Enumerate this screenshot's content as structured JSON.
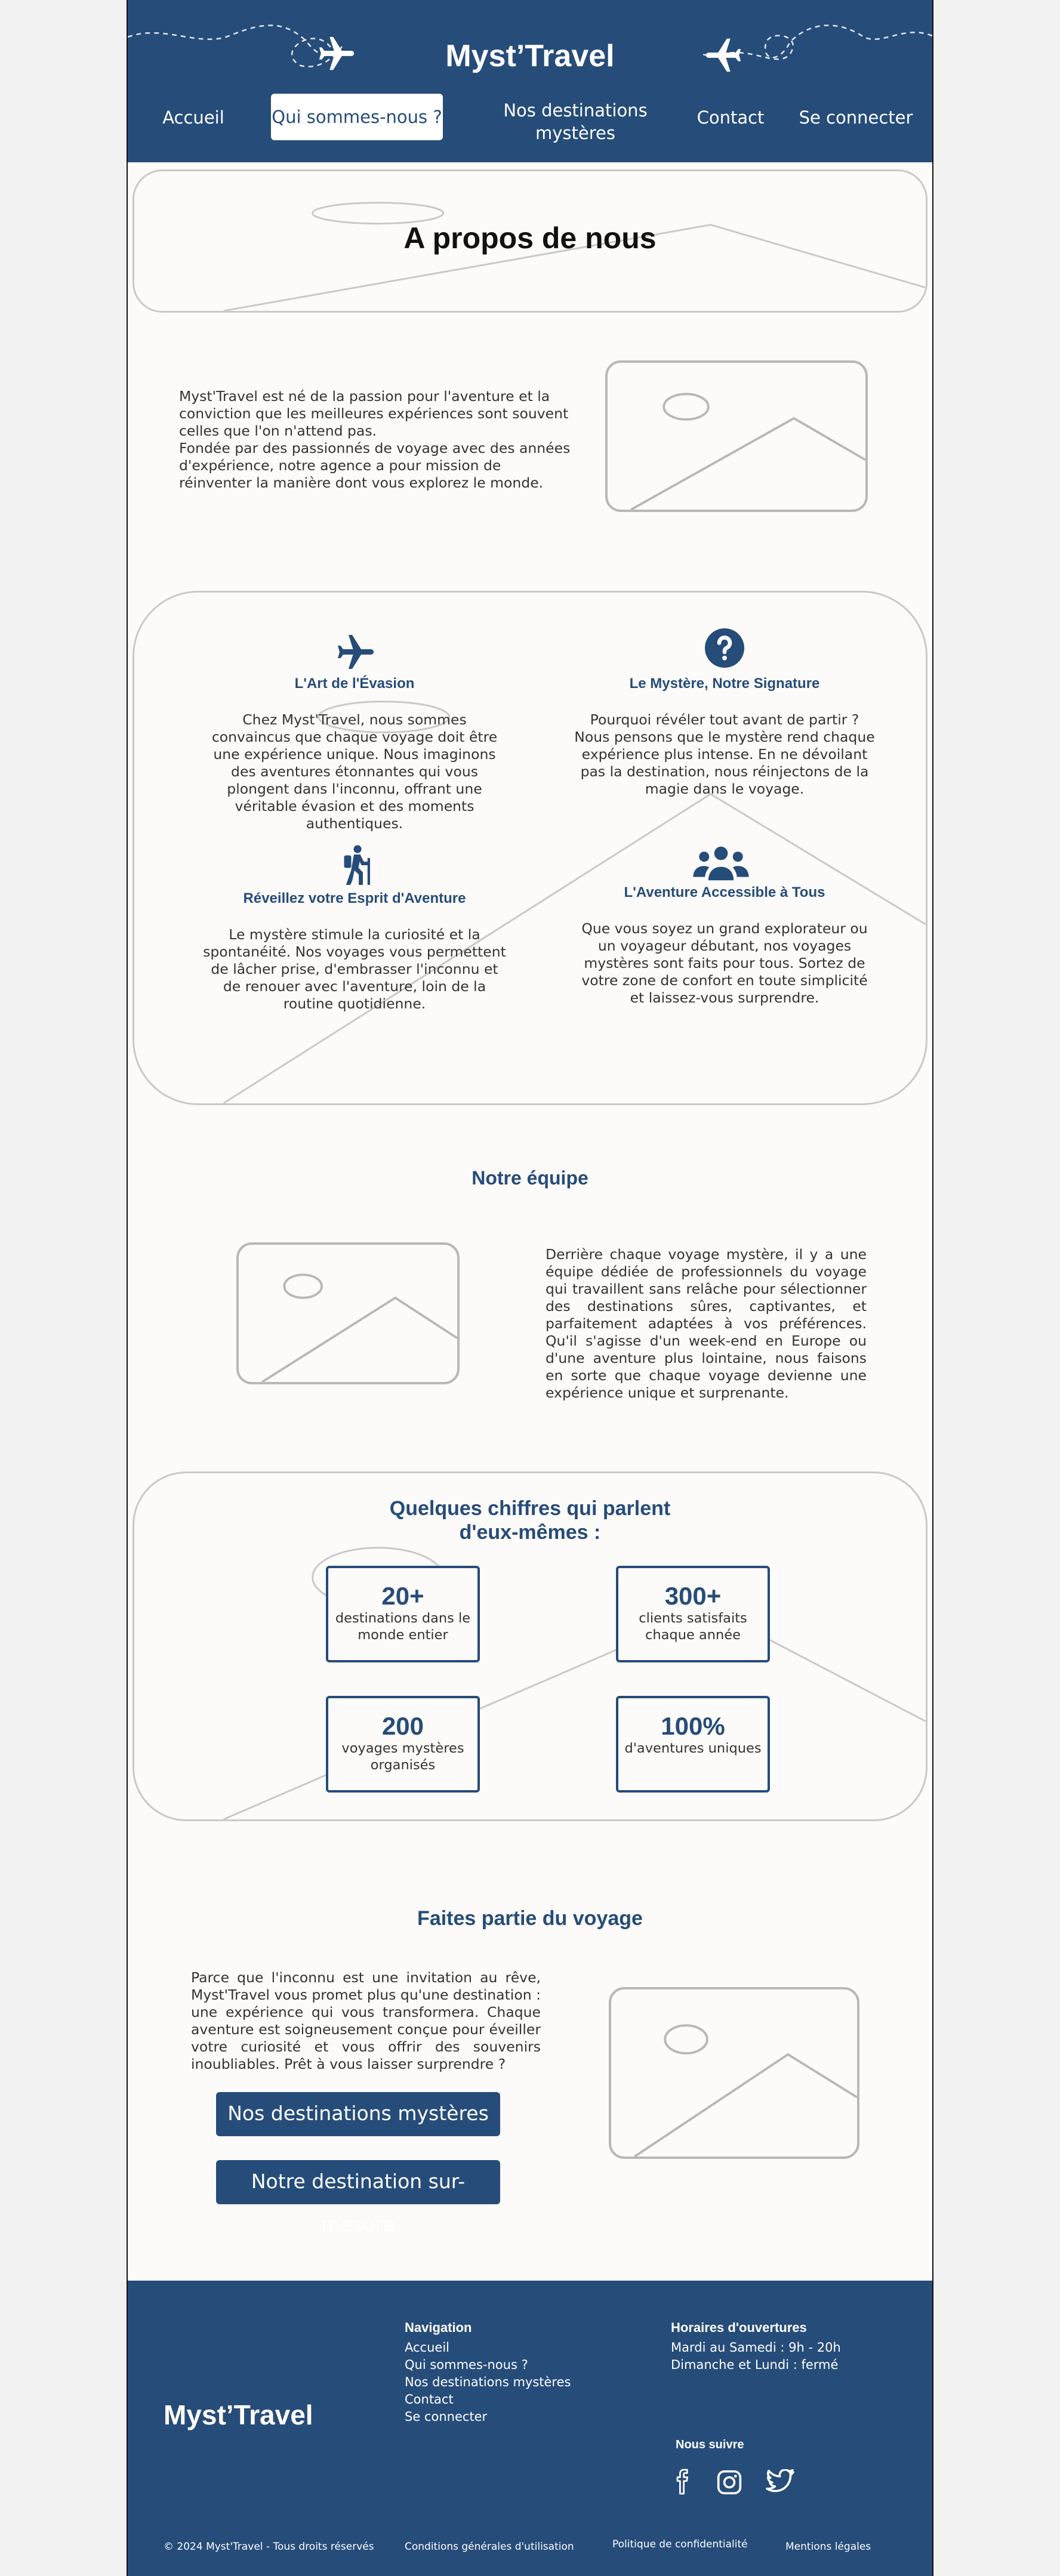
{
  "header": {
    "brand": "Myst’Travel",
    "nav": [
      "Accueil",
      "Qui sommes-nous ?",
      "Nos destinations mystères",
      "Contact",
      "Se connecter"
    ],
    "active": 1
  },
  "hero": {
    "title": "A propos de nous"
  },
  "intro": {
    "text": "Myst'Travel est né de la passion pour l'aventure et la conviction que les meilleures expériences sont souvent celles que l'on n'attend pas.\nFondée par des passionnés de voyage avec des années d'expérience, notre agence a pour mission de réinventer la manière dont vous explorez le monde."
  },
  "features": [
    {
      "icon": "airplane-icon",
      "title": "L'Art de l'Évasion",
      "text": "Chez Myst'Travel, nous sommes convaincus que chaque voyage doit être une expérience unique. Nous imaginons des aventures étonnantes qui vous plongent dans l'inconnu, offrant une véritable évasion et des moments authentiques."
    },
    {
      "icon": "question-icon",
      "title": "Le Mystère, Notre Signature",
      "text": "Pourquoi révéler tout avant de partir ? Nous pensons que le mystère rend chaque expérience plus intense. En ne dévoilant pas la destination, nous réinjectons de la magie dans le voyage."
    },
    {
      "icon": "hiker-icon",
      "title": "Réveillez votre Esprit d'Aventure",
      "text": "Le mystère stimule la curiosité et la spontanéité. Nos voyages vous permettent de lâcher prise, d'embrasser l'inconnu et de renouer avec l'aventure, loin de la routine quotidienne."
    },
    {
      "icon": "group-icon",
      "title": "L'Aventure Accessible à Tous",
      "text": "Que vous soyez un grand explorateur ou un voyageur débutant, nos voyages mystères sont faits pour tous. Sortez de votre zone de confort en toute simplicité et laissez-vous surprendre."
    }
  ],
  "team": {
    "title": "Notre équipe",
    "text": "Derrière chaque voyage mystère, il y a une équipe dédiée de professionnels du voyage qui travaillent sans relâche pour sélectionner des destinations sûres, captivantes, et parfaitement adaptées à vos préférences. Qu'il s'agisse d'un week-end en Europe ou d'une aventure plus lointaine, nous faisons en sorte que chaque voyage devienne une expérience unique et surprenante."
  },
  "stats": {
    "title": "Quelques chiffres qui parlent d'eux-mêmes :",
    "items": [
      {
        "num": "20+",
        "label": "destinations dans le monde entier"
      },
      {
        "num": "300+",
        "label": "clients satisfaits chaque année"
      },
      {
        "num": "200",
        "label": "voyages mystères organisés"
      },
      {
        "num": "100%",
        "label": "d'aventures uniques"
      }
    ]
  },
  "join": {
    "title": "Faites partie du voyage",
    "text": "Parce que l'inconnu est une invitation au rêve, Myst'Travel vous promet plus qu'une destination : une expérience qui vous transformera. Chaque aventure est soigneusement conçue pour éveiller votre curiosité et vous offrir des souvenirs inoubliables. Prêt à vous laisser surprendre ?",
    "btn1": "Nos destinations mystères",
    "btn2": "Notre destination sur-mesure"
  },
  "footer": {
    "brand": "Myst’Travel",
    "nav_title": "Navigation",
    "nav_links": [
      "Accueil",
      "Qui sommes-nous ?",
      "Nos destinations mystères",
      "Contact",
      "Se connecter"
    ],
    "hours_title": "Horaires d'ouvertures",
    "hours": [
      "Mardi au Samedi : 9h - 20h",
      "Dimanche et Lundi : fermé"
    ],
    "follow_title": "Nous suivre",
    "social": [
      "facebook-icon",
      "instagram-icon",
      "twitter-icon"
    ],
    "copyright": "© 2024 Myst'Travel - Tous droits réservés",
    "legal": [
      "Conditions générales d'utilisation",
      "Politique de confidentialité",
      "Mentions légales"
    ]
  },
  "colors": {
    "primary": "#264c79",
    "background": "#fcfbf9",
    "placeholder": "#c9c9c9"
  }
}
